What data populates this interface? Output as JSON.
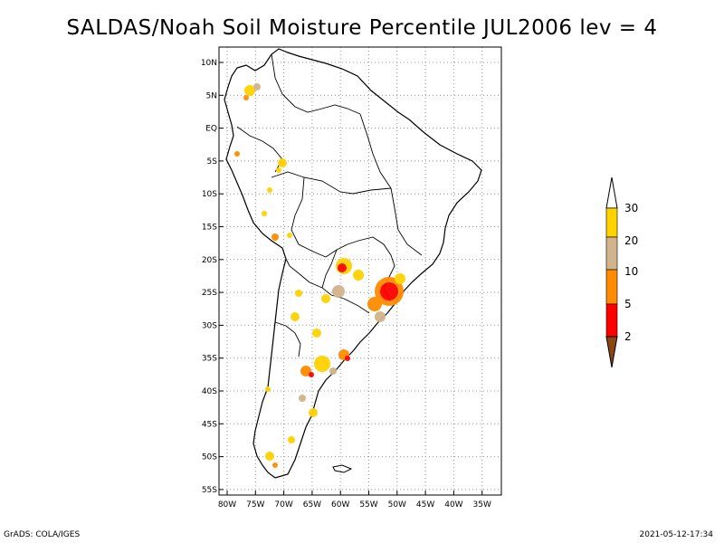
{
  "title": "SALDAS/Noah Soil Moisture Percentile JUL2006 lev = 4",
  "map": {
    "lat_labels": [
      "10N",
      "5N",
      "EQ",
      "5S",
      "10S",
      "15S",
      "20S",
      "25S",
      "30S",
      "35S",
      "40S",
      "45S",
      "50S",
      "55S"
    ],
    "lon_labels": [
      "80W",
      "75W",
      "70W",
      "65W",
      "60W",
      "55W",
      "50W",
      "45W",
      "40W",
      "35W"
    ],
    "lat_range": [
      -55,
      10
    ],
    "lon_range": [
      -80,
      -35
    ]
  },
  "legend": {
    "levels": [
      "30",
      "20",
      "10",
      "5",
      "2"
    ],
    "colors": {
      "above_30": "#ffffff",
      "c20_30": "#ffd200",
      "c10_20": "#d2b48c",
      "c5_10": "#ff8c00",
      "c2_5": "#ff0000",
      "below_2": "#8b4513"
    }
  },
  "footer": {
    "source": "GrADS: COLA/IGES",
    "timestamp": "2021-05-12-17:34"
  }
}
